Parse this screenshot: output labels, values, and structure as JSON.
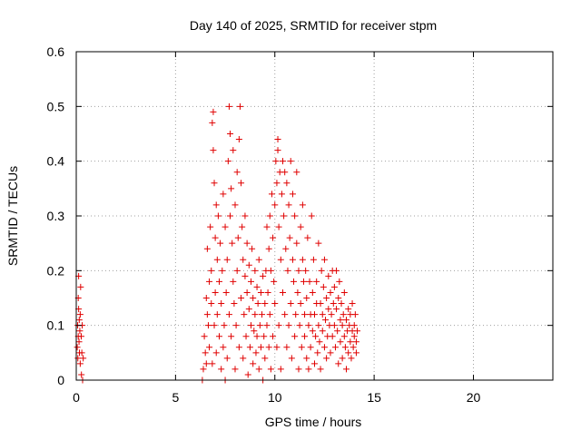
{
  "chart_data": {
    "type": "scatter",
    "title": "Day 140 of 2025, SRMTID for receiver stpm",
    "xlabel": "GPS time / hours",
    "ylabel": "SRMTID / TECUs",
    "xlim": [
      0,
      24
    ],
    "ylim": [
      0,
      0.6
    ],
    "xticks": [
      0,
      5,
      10,
      15,
      20
    ],
    "xtick_labels": [
      "0",
      "5",
      "10",
      "15",
      "20"
    ],
    "yticks": [
      0,
      0.1,
      0.2,
      0.3,
      0.4,
      0.5,
      0.6
    ],
    "ytick_labels": [
      "0",
      "0.1",
      "0.2",
      "0.3",
      "0.4",
      "0.5",
      "0.6"
    ],
    "grid": true,
    "marker": "+",
    "colors": {
      "series": "#e00000",
      "grid": "#a0a0a0",
      "frame": "#000000"
    },
    "series": [
      {
        "points": [
          [
            0.05,
            0.06
          ],
          [
            0.07,
            0.1
          ],
          [
            0.08,
            0.04
          ],
          [
            0.1,
            0.08
          ],
          [
            0.12,
            0.19
          ],
          [
            0.12,
            0.13
          ],
          [
            0.14,
            0.07
          ],
          [
            0.15,
            0.11
          ],
          [
            0.16,
            0.05
          ],
          [
            0.18,
            0.09
          ],
          [
            0.2,
            0.12
          ],
          [
            0.2,
            0.03
          ],
          [
            0.22,
            0.17
          ],
          [
            0.25,
            0.08
          ],
          [
            0.26,
            0.01
          ],
          [
            0.28,
            0.05
          ],
          [
            0.3,
            0.1
          ],
          [
            0.32,
            0.0
          ],
          [
            0.35,
            0.04
          ],
          [
            0.1,
            0.15
          ],
          [
            6.35,
            0.0
          ],
          [
            6.4,
            0.02
          ],
          [
            6.45,
            0.08
          ],
          [
            6.5,
            0.05
          ],
          [
            6.55,
            0.15
          ],
          [
            6.55,
            0.03
          ],
          [
            6.6,
            0.12
          ],
          [
            6.6,
            0.24
          ],
          [
            6.65,
            0.1
          ],
          [
            6.7,
            0.18
          ],
          [
            6.7,
            0.06
          ],
          [
            6.75,
            0.28
          ],
          [
            6.8,
            0.2
          ],
          [
            6.8,
            0.14
          ],
          [
            6.85,
            0.47
          ],
          [
            6.85,
            0.03
          ],
          [
            6.9,
            0.49
          ],
          [
            6.9,
            0.42
          ],
          [
            6.95,
            0.36
          ],
          [
            6.95,
            0.1
          ],
          [
            7.0,
            0.26
          ],
          [
            7.0,
            0.16
          ],
          [
            7.05,
            0.32
          ],
          [
            7.05,
            0.05
          ],
          [
            7.1,
            0.22
          ],
          [
            7.1,
            0.12
          ],
          [
            7.15,
            0.3
          ],
          [
            7.2,
            0.08
          ],
          [
            7.2,
            0.18
          ],
          [
            7.25,
            0.25
          ],
          [
            7.3,
            0.02
          ],
          [
            7.3,
            0.14
          ],
          [
            7.35,
            0.2
          ],
          [
            7.4,
            0.34
          ],
          [
            7.4,
            0.06
          ],
          [
            7.45,
            0.1
          ],
          [
            7.5,
            0.28
          ],
          [
            7.5,
            0.0
          ],
          [
            7.55,
            0.16
          ],
          [
            7.6,
            0.22
          ],
          [
            7.6,
            0.04
          ],
          [
            7.65,
            0.4
          ],
          [
            7.7,
            0.5
          ],
          [
            7.7,
            0.12
          ],
          [
            7.75,
            0.45
          ],
          [
            7.75,
            0.3
          ],
          [
            7.8,
            0.35
          ],
          [
            7.8,
            0.08
          ],
          [
            7.85,
            0.25
          ],
          [
            7.9,
            0.42
          ],
          [
            7.9,
            0.18
          ],
          [
            7.95,
            0.14
          ],
          [
            8.0,
            0.32
          ],
          [
            8.0,
            0.02
          ],
          [
            8.05,
            0.1
          ],
          [
            8.1,
            0.38
          ],
          [
            8.1,
            0.2
          ],
          [
            8.15,
            0.26
          ],
          [
            8.2,
            0.06
          ],
          [
            8.2,
            0.44
          ],
          [
            8.25,
            0.5
          ],
          [
            8.3,
            0.15
          ],
          [
            8.3,
            0.36
          ],
          [
            8.35,
            0.28
          ],
          [
            8.4,
            0.04
          ],
          [
            8.4,
            0.22
          ],
          [
            8.45,
            0.12
          ],
          [
            8.5,
            0.3
          ],
          [
            8.5,
            0.19
          ],
          [
            8.55,
            0.08
          ],
          [
            8.6,
            0.25
          ],
          [
            8.6,
            0.16
          ],
          [
            8.65,
            0.01
          ],
          [
            8.7,
            0.21
          ],
          [
            8.7,
            0.13
          ],
          [
            8.75,
            0.06
          ],
          [
            8.8,
            0.18
          ],
          [
            8.8,
            0.1
          ],
          [
            8.85,
            0.24
          ],
          [
            8.9,
            0.03
          ],
          [
            8.9,
            0.15
          ],
          [
            8.95,
            0.09
          ],
          [
            9.0,
            0.2
          ],
          [
            9.0,
            0.12
          ],
          [
            9.05,
            0.05
          ],
          [
            9.1,
            0.17
          ],
          [
            9.1,
            0.08
          ],
          [
            9.15,
            0.14
          ],
          [
            9.2,
            0.02
          ],
          [
            9.2,
            0.22
          ],
          [
            9.25,
            0.1
          ],
          [
            9.3,
            0.06
          ],
          [
            9.3,
            0.16
          ],
          [
            9.35,
            0.12
          ],
          [
            9.4,
            0.19
          ],
          [
            9.4,
            0.0
          ],
          [
            9.45,
            0.08
          ],
          [
            9.5,
            0.14
          ],
          [
            9.5,
            0.04
          ],
          [
            9.55,
            0.2
          ],
          [
            9.6,
            0.1
          ],
          [
            9.6,
            0.28
          ],
          [
            9.65,
            0.16
          ],
          [
            9.7,
            0.06
          ],
          [
            9.7,
            0.24
          ],
          [
            9.75,
            0.3
          ],
          [
            9.75,
            0.12
          ],
          [
            9.8,
            0.2
          ],
          [
            9.8,
            0.02
          ],
          [
            9.85,
            0.34
          ],
          [
            9.9,
            0.26
          ],
          [
            9.9,
            0.08
          ],
          [
            9.95,
            0.18
          ],
          [
            10.0,
            0.32
          ],
          [
            10.0,
            0.14
          ],
          [
            10.05,
            0.4
          ],
          [
            10.1,
            0.36
          ],
          [
            10.1,
            0.06
          ],
          [
            10.15,
            0.42
          ],
          [
            10.15,
            0.44
          ],
          [
            10.2,
            0.28
          ],
          [
            10.2,
            0.1
          ],
          [
            10.25,
            0.38
          ],
          [
            10.3,
            0.22
          ],
          [
            10.3,
            0.02
          ],
          [
            10.35,
            0.34
          ],
          [
            10.4,
            0.4
          ],
          [
            10.4,
            0.16
          ],
          [
            10.45,
            0.3
          ],
          [
            10.5,
            0.12
          ],
          [
            10.5,
            0.38
          ],
          [
            10.55,
            0.24
          ],
          [
            10.6,
            0.06
          ],
          [
            10.6,
            0.36
          ],
          [
            10.65,
            0.2
          ],
          [
            10.7,
            0.32
          ],
          [
            10.7,
            0.1
          ],
          [
            10.75,
            0.26
          ],
          [
            10.8,
            0.14
          ],
          [
            10.8,
            0.4
          ],
          [
            10.85,
            0.04
          ],
          [
            10.9,
            0.22
          ],
          [
            10.9,
            0.34
          ],
          [
            10.95,
            0.18
          ],
          [
            11.0,
            0.08
          ],
          [
            11.0,
            0.3
          ],
          [
            11.05,
            0.12
          ],
          [
            11.1,
            0.25
          ],
          [
            11.1,
            0.38
          ],
          [
            11.15,
            0.16
          ],
          [
            11.2,
            0.02
          ],
          [
            11.2,
            0.2
          ],
          [
            11.25,
            0.1
          ],
          [
            11.3,
            0.28
          ],
          [
            11.3,
            0.14
          ],
          [
            11.35,
            0.06
          ],
          [
            11.4,
            0.22
          ],
          [
            11.4,
            0.32
          ],
          [
            11.45,
            0.18
          ],
          [
            11.5,
            0.08
          ],
          [
            11.5,
            0.12
          ],
          [
            11.55,
            0.2
          ],
          [
            11.6,
            0.04
          ],
          [
            11.6,
            0.15
          ],
          [
            11.65,
            0.26
          ],
          [
            11.7,
            0.1
          ],
          [
            11.7,
            0.02
          ],
          [
            11.75,
            0.18
          ],
          [
            11.8,
            0.12
          ],
          [
            11.8,
            0.06
          ],
          [
            11.85,
            0.3
          ],
          [
            11.9,
            0.16
          ],
          [
            11.9,
            0.09
          ],
          [
            11.95,
            0.22
          ],
          [
            12.0,
            0.12
          ],
          [
            12.0,
            0.03
          ],
          [
            12.05,
            0.08
          ],
          [
            12.1,
            0.18
          ],
          [
            12.1,
            0.14
          ],
          [
            12.15,
            0.05
          ],
          [
            12.2,
            0.1
          ],
          [
            12.2,
            0.25
          ],
          [
            12.25,
            0.07
          ],
          [
            12.3,
            0.14
          ],
          [
            12.3,
            0.02
          ],
          [
            12.35,
            0.2
          ],
          [
            12.4,
            0.09
          ],
          [
            12.4,
            0.12
          ],
          [
            12.45,
            0.17
          ],
          [
            12.5,
            0.06
          ],
          [
            12.5,
            0.22
          ],
          [
            12.55,
            0.11
          ],
          [
            12.6,
            0.04
          ],
          [
            12.6,
            0.15
          ],
          [
            12.65,
            0.08
          ],
          [
            12.7,
            0.13
          ],
          [
            12.7,
            0.19
          ],
          [
            12.75,
            0.1
          ],
          [
            12.8,
            0.05
          ],
          [
            12.8,
            0.16
          ],
          [
            12.85,
            0.12
          ],
          [
            12.9,
            0.08
          ],
          [
            12.9,
            0.2
          ],
          [
            12.95,
            0.14
          ],
          [
            13.0,
            0.1
          ],
          [
            13.0,
            0.17
          ],
          [
            13.05,
            0.06
          ],
          [
            13.1,
            0.13
          ],
          [
            13.1,
            0.2
          ],
          [
            13.15,
            0.09
          ],
          [
            13.2,
            0.15
          ],
          [
            13.2,
            0.03
          ],
          [
            13.25,
            0.18
          ],
          [
            13.3,
            0.11
          ],
          [
            13.3,
            0.07
          ],
          [
            13.35,
            0.14
          ],
          [
            13.4,
            0.1
          ],
          [
            13.4,
            0.04
          ],
          [
            13.45,
            0.12
          ],
          [
            13.5,
            0.08
          ],
          [
            13.5,
            0.16
          ],
          [
            13.55,
            0.06
          ],
          [
            13.6,
            0.11
          ],
          [
            13.6,
            0.02
          ],
          [
            13.65,
            0.09
          ],
          [
            13.7,
            0.13
          ],
          [
            13.7,
            0.05
          ],
          [
            13.75,
            0.1
          ],
          [
            13.8,
            0.07
          ],
          [
            13.8,
            0.12
          ],
          [
            13.85,
            0.04
          ],
          [
            13.9,
            0.09
          ],
          [
            13.9,
            0.14
          ],
          [
            13.95,
            0.06
          ],
          [
            14.0,
            0.1
          ],
          [
            14.0,
            0.08
          ],
          [
            14.05,
            0.12
          ],
          [
            14.1,
            0.05
          ],
          [
            14.1,
            0.07
          ],
          [
            14.15,
            0.09
          ]
        ]
      }
    ]
  }
}
